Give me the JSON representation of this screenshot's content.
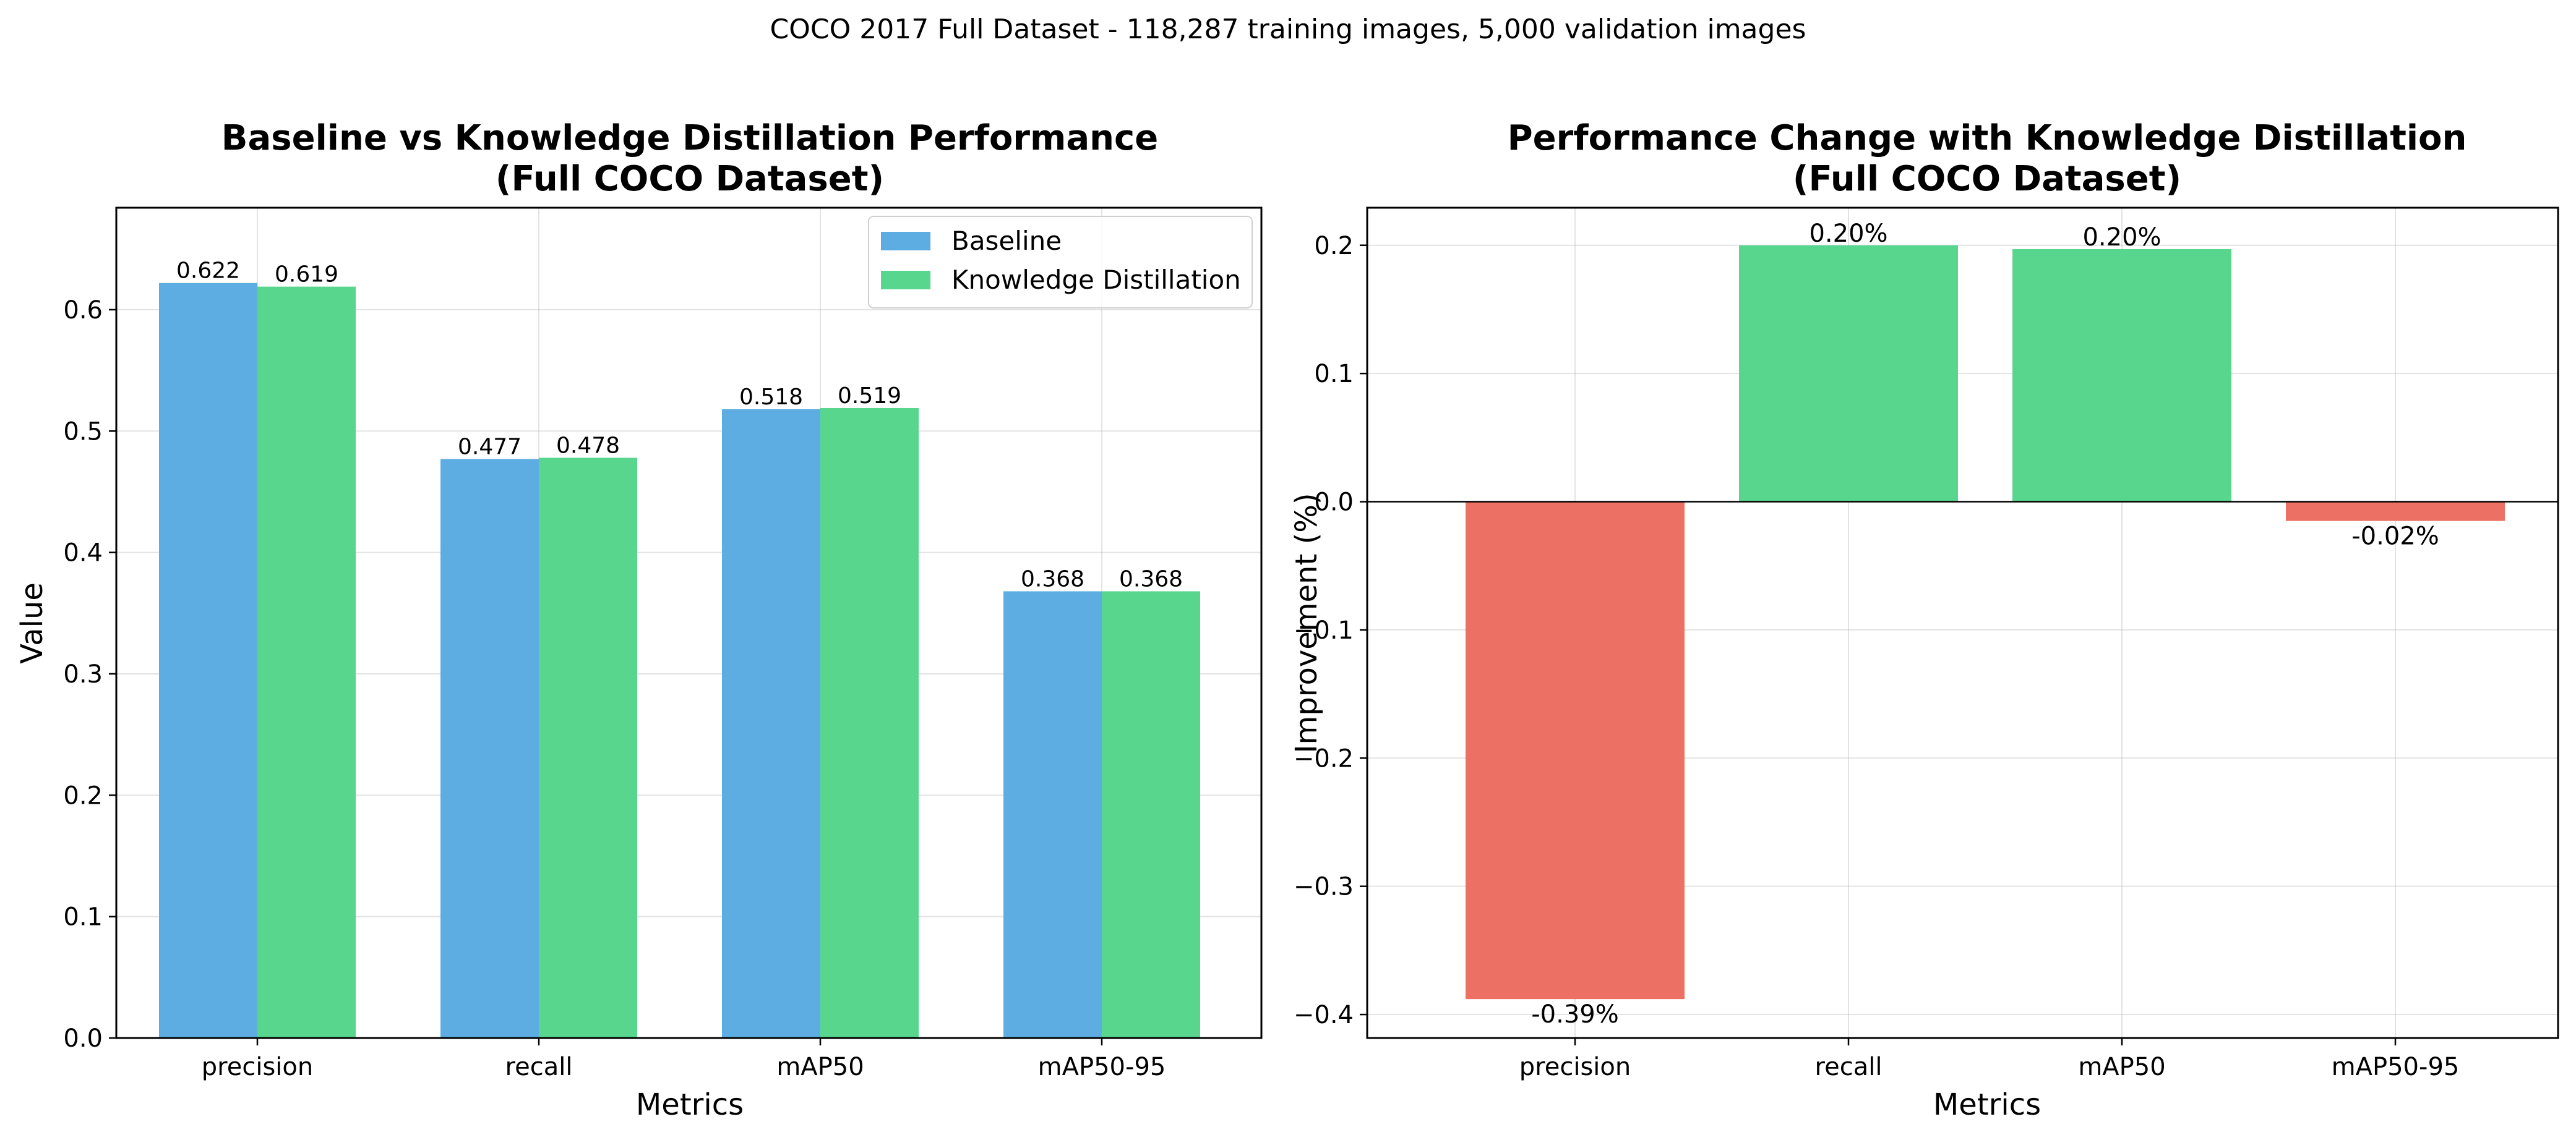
{
  "suptitle": "COCO 2017 Full Dataset - 118,287 training images, 5,000 validation images",
  "colors": {
    "baseline": "#5dade2",
    "kd": "#58d68d",
    "positive": "#58d68d",
    "negative": "#ec7063"
  },
  "chart_data": [
    {
      "type": "bar",
      "title": "Baseline vs Knowledge Distillation Performance\n(Full COCO Dataset)",
      "title_lines": [
        "Baseline vs Knowledge Distillation Performance",
        "(Full COCO Dataset)"
      ],
      "xlabel": "Metrics",
      "ylabel": "Value",
      "categories": [
        "precision",
        "recall",
        "mAP50",
        "mAP50-95"
      ],
      "series": [
        {
          "name": "Baseline",
          "values": [
            0.622,
            0.477,
            0.518,
            0.368
          ],
          "labels": [
            "0.622",
            "0.477",
            "0.518",
            "0.368"
          ]
        },
        {
          "name": "Knowledge Distillation",
          "values": [
            0.619,
            0.478,
            0.519,
            0.368
          ],
          "labels": [
            "0.619",
            "0.478",
            "0.519",
            "0.368"
          ]
        }
      ],
      "ylim": [
        0,
        0.684
      ],
      "yticks": [
        0.0,
        0.1,
        0.2,
        0.3,
        0.4,
        0.5,
        0.6
      ],
      "ytick_labels": [
        "0.0",
        "0.1",
        "0.2",
        "0.3",
        "0.4",
        "0.5",
        "0.6"
      ],
      "grid": true,
      "legend": "upper right"
    },
    {
      "type": "bar",
      "title": "Performance Change with Knowledge Distillation\n(Full COCO Dataset)",
      "title_lines": [
        "Performance Change with Knowledge Distillation",
        "(Full COCO Dataset)"
      ],
      "xlabel": "Metrics",
      "ylabel": "Improvement (%)",
      "categories": [
        "precision",
        "recall",
        "mAP50",
        "mAP50-95"
      ],
      "values": [
        -0.388,
        0.2,
        0.197,
        -0.015
      ],
      "labels": [
        "-0.39%",
        "0.20%",
        "0.20%",
        "-0.02%"
      ],
      "ylim": [
        -0.4183,
        0.2293
      ],
      "yticks": [
        -0.4,
        -0.3,
        -0.2,
        -0.1,
        0.0,
        0.1,
        0.2
      ],
      "ytick_labels": [
        "−0.4",
        "−0.3",
        "−0.2",
        "−0.1",
        "0.0",
        "0.1",
        "0.2"
      ],
      "grid": true
    }
  ]
}
